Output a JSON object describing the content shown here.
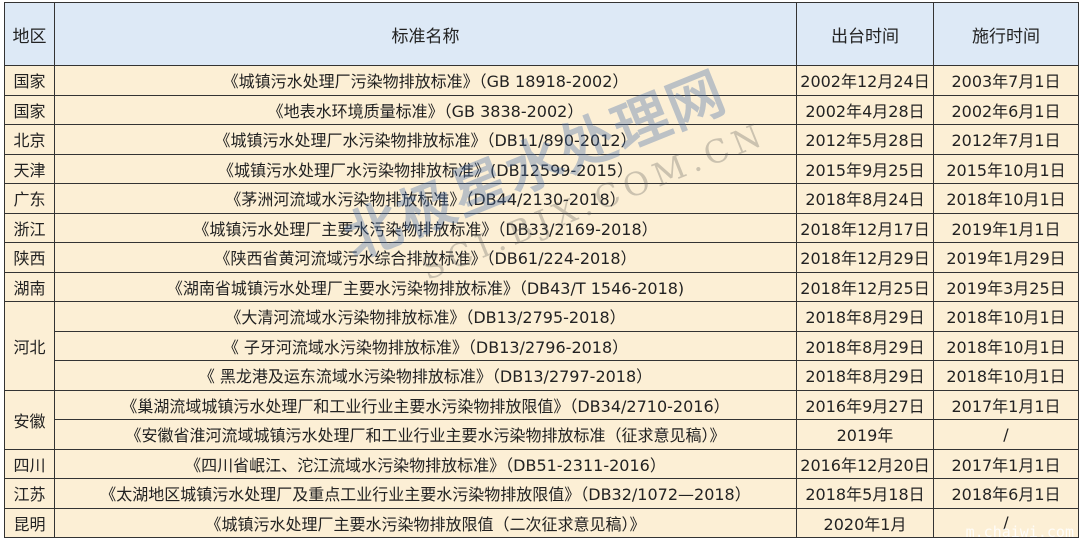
{
  "headers": [
    "地区",
    "标准名称",
    "出台时间",
    "施行时间"
  ],
  "rows": [
    {
      "region": "国家",
      "name": "《城镇污水处理厂污染物排放标准》（GB 18918-2002）",
      "issued": "2002年12月24日",
      "effective": "2003年7月1日"
    },
    {
      "region": "国家",
      "name": "《地表水环境质量标准》（GB 3838-2002）",
      "issued": "2002年4月28日",
      "effective": "2002年6月1日"
    },
    {
      "region": "北京",
      "name": "《城镇污水处理厂水污染物排放标准》（DB11/890-2012）",
      "issued": "2012年5月28日",
      "effective": "2012年7月1日"
    },
    {
      "region": "天津",
      "name": "《城镇污水处理厂水污染物排放标准》(DB12599-2015）",
      "issued": "2015年9月25日",
      "effective": "2015年10月1日"
    },
    {
      "region": "广东",
      "name": "《茅洲河流域水污染物排放标准》（DB44/2130-2018）",
      "issued": "2018年8月24日",
      "effective": "2018年10月1日"
    },
    {
      "region": "浙江",
      "name": "《城镇污水处理厂主要水污染物排放标准》（DB33/2169-2018）",
      "issued": "2018年12月17日",
      "effective": "2019年1月1日"
    },
    {
      "region": "陕西",
      "name": "《陕西省黄河流域污水综合排放标准》（DB61/224-2018）",
      "issued": "2018年12月29日",
      "effective": "2019年1月29日"
    },
    {
      "region": "湖南",
      "name": "《湖南省城镇污水处理厂主要水污染物排放标准》（DB43/T 1546-2018)",
      "issued": "2018年12月25日",
      "effective": "2019年3月25日"
    },
    {
      "region": "河北",
      "name": "《大清河流域水污染物排放标准》（DB13/2795-2018）",
      "issued": "2018年8月29日",
      "effective": "2018年10月1日"
    },
    {
      "region": "",
      "name": "《 子牙河流域水污染物排放标准》（DB13/2796-2018）",
      "issued": "2018年8月29日",
      "effective": "2018年10月1日"
    },
    {
      "region": "",
      "name": "《 黑龙港及运东流域水污染物排放标准》（DB13/2797-2018）",
      "issued": "2018年8月29日",
      "effective": "2018年10月1日"
    },
    {
      "region": "安徽",
      "name": "《巢湖流域城镇污水处理厂和工业行业主要水污染物排放限值》（DB34/2710-2016）",
      "issued": "2016年9月27日",
      "effective": "2017年1月1日"
    },
    {
      "region": "",
      "name": "《安徽省淮河流域城镇污水处理厂和工业行业主要水污染物排放标准（征求意见稿）》",
      "issued": "2019年",
      "effective": "/"
    },
    {
      "region": "四川",
      "name": "《四川省岷江、沱江流域水污染物排放标准》（DB51-2311-2016）",
      "issued": "2016年12月20日",
      "effective": "2017年1月1日"
    },
    {
      "region": "江苏",
      "name": "《太湖地区城镇污水处理厂及重点工业行业主要水污染物排放限值》（DB32/1072—2018）",
      "issued": "2018年5月18日",
      "effective": "2018年6月1日"
    },
    {
      "region": "昆明",
      "name": "《城镇污水处理厂主要水污染物排放限值（二次征求意见稿）》",
      "issued": "2020年1月",
      "effective": "/"
    }
  ],
  "watermark": {
    "text": "北极星水处理网",
    "sub": "SCI.BJX.COM.CN",
    "corner": "m.chaiwi.com"
  }
}
